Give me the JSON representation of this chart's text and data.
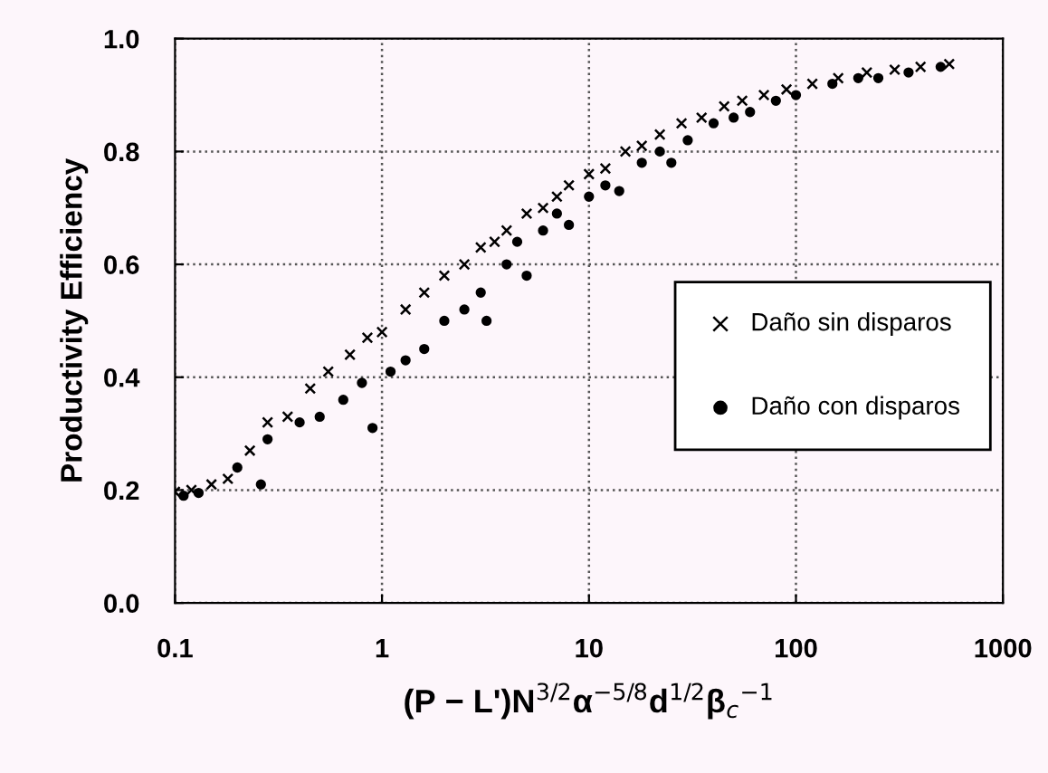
{
  "chart_data": {
    "type": "scatter",
    "xlabel": "(P − L')N$^{3/2}$α$^{−5/8}$d$^{1/2}$β$_{c}$$^{−1}$",
    "ylabel": "Productivity Efficiency",
    "log": "x",
    "xlim": [
      0.1,
      1000
    ],
    "xticks": [
      0.1,
      1,
      10,
      100,
      1000
    ],
    "ylim": [
      0,
      1
    ],
    "yticks": [
      {
        "value": 0,
        "label": "0.0"
      },
      {
        "value": 0.2,
        "label": "0.2"
      },
      {
        "value": 0.4,
        "label": "0.4"
      },
      {
        "value": 0.6,
        "label": "0.6"
      },
      {
        "value": 0.8,
        "label": "0.8"
      },
      {
        "value": 1,
        "label": "1.0"
      }
    ],
    "grid": true,
    "legend": "right",
    "series": [
      {
        "name": "Daño sin disparos",
        "color": "#000000",
        "marker": "cross",
        "x": [
          0.1,
          0.12,
          0.15,
          0.18,
          0.23,
          0.28,
          0.35,
          0.45,
          0.55,
          0.7,
          0.85,
          1.0,
          1.3,
          1.6,
          2.0,
          2.5,
          3,
          3.5,
          4,
          5,
          6,
          7,
          8,
          10,
          12,
          15,
          18,
          22,
          28,
          35,
          45,
          55,
          70,
          90,
          120,
          160,
          220,
          300,
          400,
          550
        ],
        "values": [
          0.197,
          0.2,
          0.21,
          0.22,
          0.27,
          0.32,
          0.33,
          0.38,
          0.41,
          0.44,
          0.47,
          0.48,
          0.52,
          0.55,
          0.58,
          0.6,
          0.63,
          0.64,
          0.66,
          0.69,
          0.7,
          0.72,
          0.74,
          0.76,
          0.77,
          0.8,
          0.81,
          0.83,
          0.85,
          0.86,
          0.88,
          0.89,
          0.9,
          0.91,
          0.92,
          0.93,
          0.94,
          0.945,
          0.95,
          0.955
        ]
      },
      {
        "name": "Daño con disparos",
        "color": "#000000",
        "marker": "circle",
        "x": [
          0.11,
          0.13,
          0.2,
          0.26,
          0.28,
          0.4,
          0.5,
          0.65,
          0.8,
          0.9,
          1.1,
          1.3,
          1.6,
          2.0,
          2.5,
          3,
          3.2,
          4,
          4.5,
          5,
          6,
          7,
          8,
          10,
          12,
          14,
          18,
          22,
          25,
          30,
          40,
          50,
          60,
          80,
          100,
          150,
          200,
          250,
          350,
          500
        ],
        "values": [
          0.19,
          0.195,
          0.24,
          0.21,
          0.29,
          0.32,
          0.33,
          0.36,
          0.39,
          0.31,
          0.41,
          0.43,
          0.45,
          0.5,
          0.52,
          0.55,
          0.5,
          0.6,
          0.64,
          0.58,
          0.66,
          0.69,
          0.67,
          0.72,
          0.74,
          0.73,
          0.78,
          0.8,
          0.78,
          0.82,
          0.85,
          0.86,
          0.87,
          0.89,
          0.9,
          0.92,
          0.93,
          0.93,
          0.94,
          0.95
        ]
      }
    ]
  }
}
